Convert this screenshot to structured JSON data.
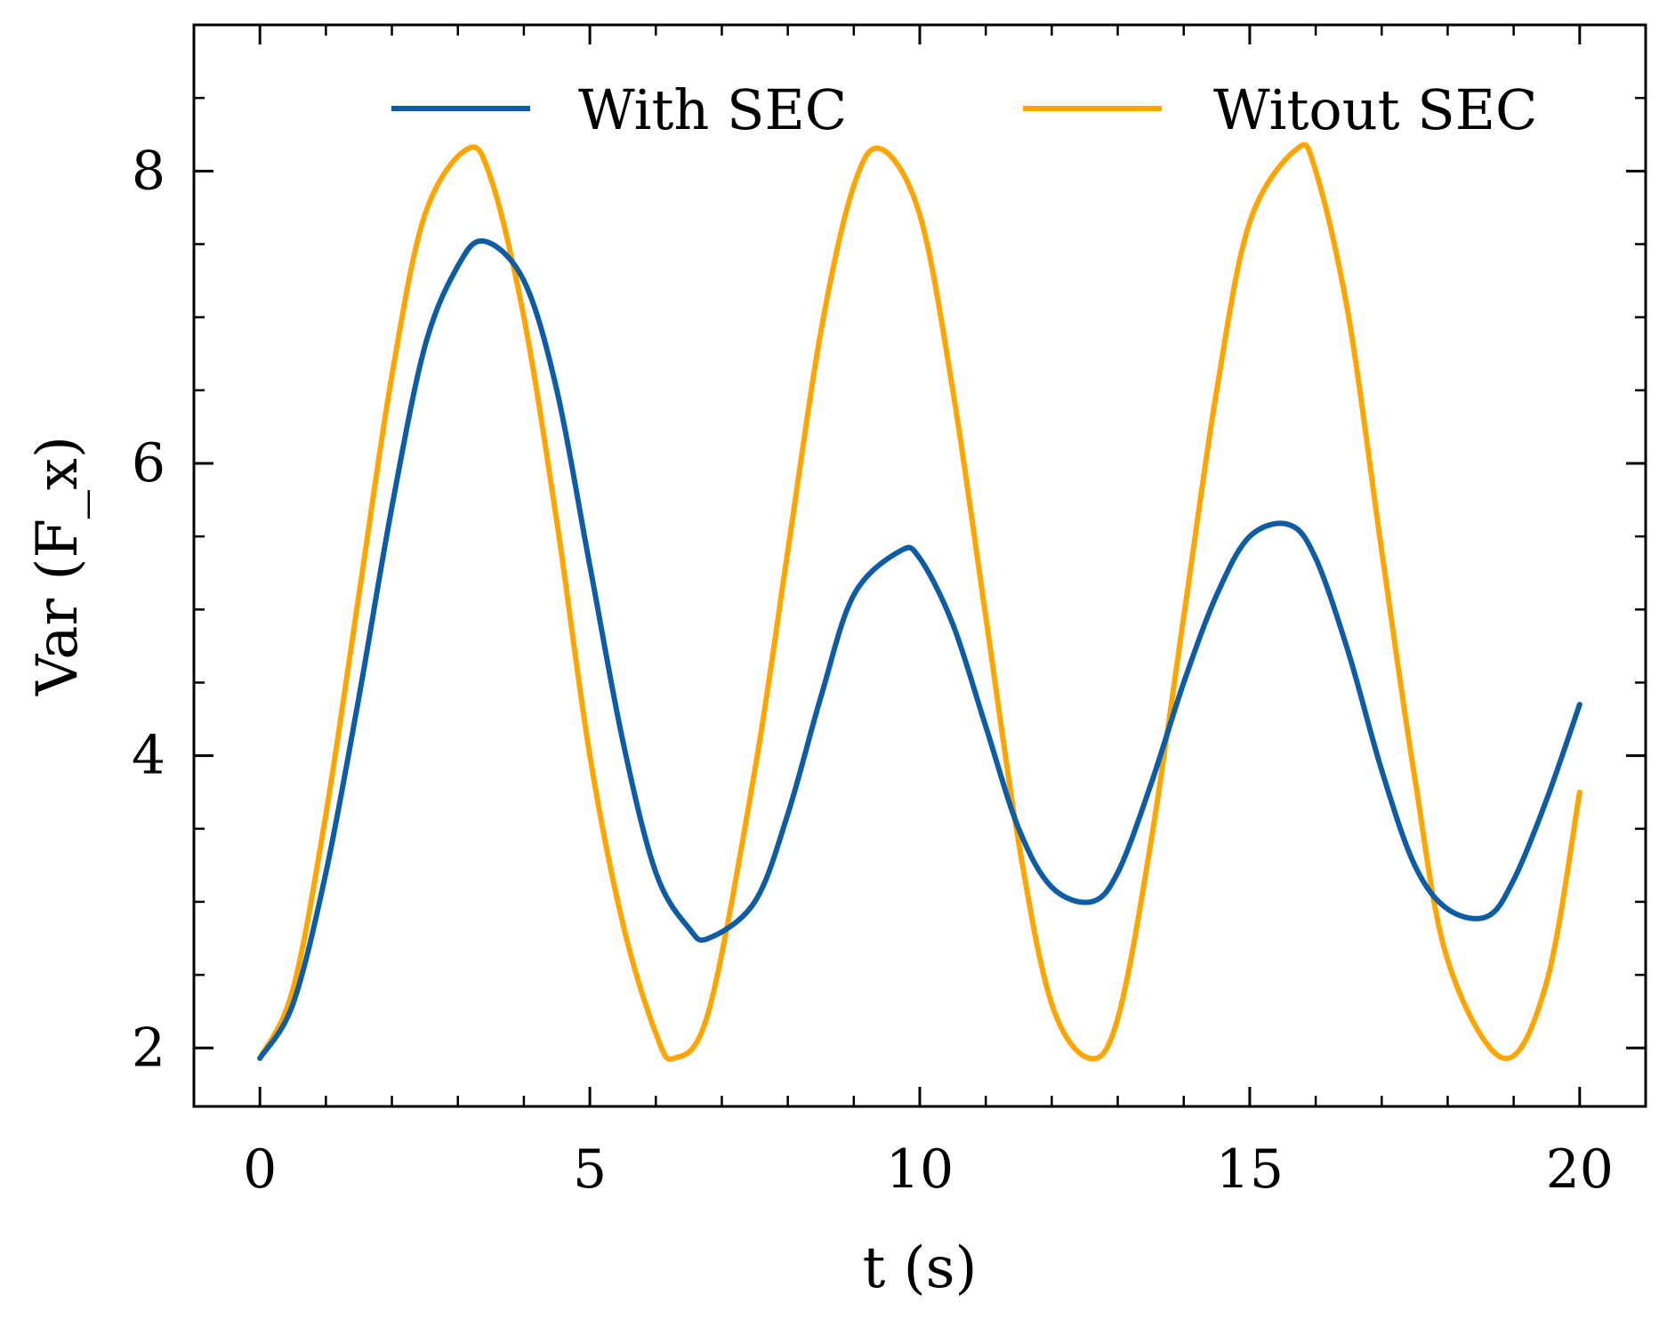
{
  "chart_data": {
    "type": "line",
    "title": "",
    "xlabel": "t (s)",
    "ylabel": "Var (F_x)",
    "xlim": [
      -1,
      21
    ],
    "ylim": [
      1.6,
      9.0
    ],
    "xticks": [
      0,
      5,
      10,
      15,
      20
    ],
    "yticks": [
      2,
      4,
      6,
      8
    ],
    "xtick_labels": [
      "0",
      "5",
      "10",
      "15",
      "20"
    ],
    "ytick_labels": [
      "2",
      "4",
      "6",
      "8"
    ],
    "grid": false,
    "legend_position": "top",
    "series": [
      {
        "name": "With SEC",
        "color": "#0C5DA5",
        "x": [
          0,
          0.5,
          1,
          1.5,
          2,
          2.5,
          3,
          3.4,
          4,
          4.5,
          5,
          5.5,
          6,
          6.5,
          6.8,
          7.5,
          8,
          8.5,
          9,
          9.7,
          10,
          10.5,
          11,
          11.5,
          12,
          12.6,
          13,
          13.5,
          14,
          14.5,
          15,
          15.6,
          16,
          16.5,
          17,
          17.5,
          18,
          18.6,
          19,
          19.5,
          20
        ],
        "y": [
          1.93,
          2.3,
          3.2,
          4.4,
          5.7,
          6.8,
          7.35,
          7.52,
          7.25,
          6.5,
          5.3,
          4.1,
          3.2,
          2.82,
          2.75,
          3.0,
          3.6,
          4.4,
          5.1,
          5.4,
          5.35,
          4.9,
          4.2,
          3.5,
          3.1,
          3.0,
          3.2,
          3.8,
          4.5,
          5.1,
          5.5,
          5.58,
          5.35,
          4.7,
          3.9,
          3.25,
          2.95,
          2.9,
          3.15,
          3.7,
          4.35
        ]
      },
      {
        "name": "Witout SEC",
        "color": "#FFA500",
        "x": [
          0,
          0.5,
          1,
          1.5,
          2,
          2.5,
          3.14,
          3.5,
          4,
          4.5,
          5,
          5.5,
          6,
          6.28,
          6.8,
          7.5,
          8,
          8.5,
          9,
          9.42,
          10,
          10.5,
          11,
          11.5,
          12,
          12.57,
          13,
          13.5,
          14,
          14.5,
          15,
          15.71,
          16,
          16.5,
          17,
          17.5,
          18,
          18.85,
          19.5,
          20
        ],
        "y": [
          1.93,
          2.4,
          3.6,
          5.1,
          6.6,
          7.7,
          8.15,
          7.95,
          7.0,
          5.6,
          4.0,
          2.85,
          2.1,
          1.93,
          2.25,
          3.9,
          5.4,
          6.9,
          7.9,
          8.15,
          7.7,
          6.5,
          4.95,
          3.4,
          2.3,
          1.93,
          2.2,
          3.4,
          4.95,
          6.5,
          7.65,
          8.15,
          8.0,
          7.0,
          5.4,
          3.85,
          2.6,
          1.93,
          2.45,
          3.75
        ]
      }
    ]
  }
}
